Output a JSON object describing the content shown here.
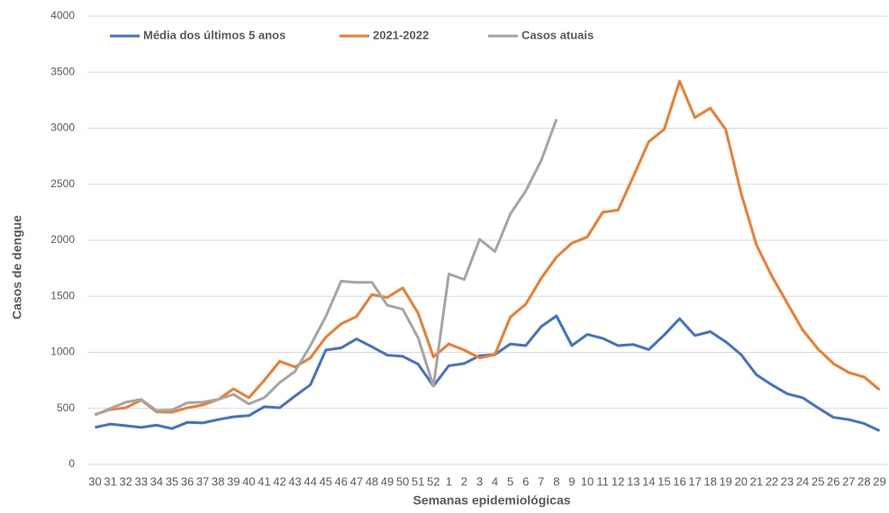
{
  "chart_data": {
    "type": "line",
    "x_label": "Semanas epidemiológicas",
    "y_label": "Casos de dengue",
    "categories": [
      "30",
      "31",
      "32",
      "33",
      "34",
      "35",
      "36",
      "37",
      "38",
      "39",
      "40",
      "41",
      "42",
      "43",
      "44",
      "45",
      "46",
      "47",
      "48",
      "49",
      "50",
      "51",
      "52",
      "1",
      "2",
      "3",
      "4",
      "5",
      "6",
      "7",
      "8",
      "9",
      "10",
      "11",
      "12",
      "13",
      "14",
      "15",
      "16",
      "17",
      "18",
      "19",
      "20",
      "21",
      "22",
      "23",
      "24",
      "25",
      "26",
      "27",
      "28",
      "29"
    ],
    "series": [
      {
        "name": "Média dos últimos 5 anos",
        "color": "#4472c4",
        "values": [
          330,
          360,
          345,
          330,
          350,
          320,
          375,
          370,
          400,
          425,
          435,
          515,
          505,
          610,
          710,
          1020,
          1040,
          1120,
          1050,
          975,
          965,
          895,
          700,
          880,
          900,
          970,
          980,
          1075,
          1060,
          1230,
          1325,
          1060,
          1160,
          1125,
          1060,
          1070,
          1025,
          1155,
          1300,
          1150,
          1185,
          1095,
          980,
          800,
          710,
          630,
          595,
          505,
          420,
          400,
          365,
          300
        ]
      },
      {
        "name": "2021-2022",
        "color": "#ed7d31",
        "values": [
          445,
          490,
          505,
          575,
          470,
          465,
          505,
          530,
          580,
          675,
          595,
          750,
          920,
          870,
          950,
          1135,
          1255,
          1320,
          1515,
          1490,
          1575,
          1350,
          960,
          1075,
          1020,
          950,
          980,
          1315,
          1430,
          1660,
          1850,
          1975,
          2030,
          2250,
          2270,
          2570,
          2880,
          2990,
          3420,
          3095,
          3180,
          2990,
          2420,
          1960,
          1680,
          1440,
          1200,
          1030,
          900,
          820,
          780,
          665
        ]
      },
      {
        "name": "Casos atuais",
        "color": "#a5a5a5",
        "values": [
          440,
          500,
          555,
          580,
          480,
          485,
          550,
          555,
          580,
          625,
          540,
          595,
          730,
          830,
          1060,
          1320,
          1635,
          1625,
          1625,
          1420,
          1385,
          1130,
          700,
          1700,
          1650,
          2010,
          1900,
          2235,
          2440,
          2710,
          3080,
          null,
          null,
          null,
          null,
          null,
          null,
          null,
          null,
          null,
          null,
          null,
          null,
          null,
          null,
          null,
          null,
          null,
          null,
          null,
          null,
          null
        ]
      }
    ],
    "ylim": [
      0,
      4000
    ],
    "yticks": [
      0,
      500,
      1000,
      1500,
      2000,
      2500,
      3000,
      3500,
      4000
    ],
    "grid": true,
    "legend": "top-left"
  }
}
